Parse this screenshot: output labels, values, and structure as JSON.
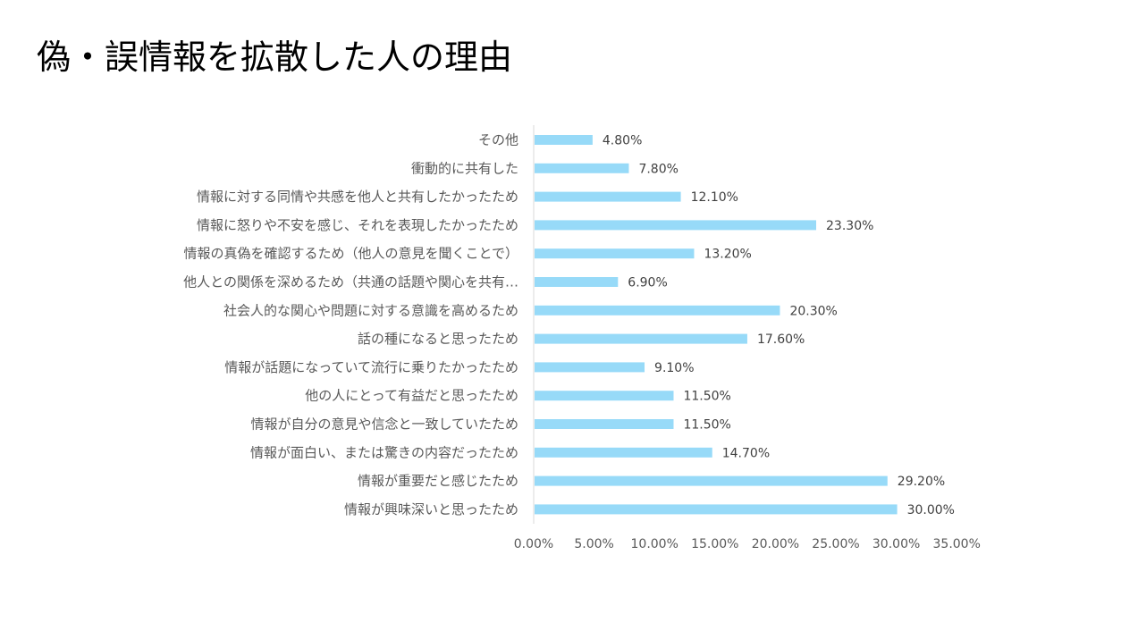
{
  "slide": {
    "title": "偽・誤情報を拡散した人の理由"
  },
  "chart_data": {
    "type": "bar",
    "orientation": "horizontal",
    "title": "",
    "xlabel": "",
    "ylabel": "",
    "categories": [
      "その他",
      "衝動的に共有した",
      "情報に対する同情や共感を他人と共有したかったため",
      "情報に怒りや不安を感じ、それを表現したかったため",
      "情報の真偽を確認するため（他人の意見を聞くことで）",
      "他人との関係を深めるため（共通の話題や関心を共有…",
      "社会人的な関心や問題に対する意識を高めるため",
      "話の種になると思ったため",
      "情報が話題になっていて流行に乗りたかったため",
      "他の人にとって有益だと思ったため",
      "情報が自分の意見や信念と一致していたため",
      "情報が面白い、または驚きの内容だったため",
      "情報が重要だと感じたため",
      "情報が興味深いと思ったため"
    ],
    "values": [
      4.8,
      7.8,
      12.1,
      23.3,
      13.2,
      6.9,
      20.3,
      17.6,
      9.1,
      11.5,
      11.5,
      14.7,
      29.2,
      30.0
    ],
    "value_labels": [
      "4.80%",
      "7.80%",
      "12.10%",
      "23.30%",
      "13.20%",
      "6.90%",
      "20.30%",
      "17.60%",
      "9.10%",
      "11.50%",
      "11.50%",
      "14.70%",
      "29.20%",
      "30.00%"
    ],
    "xlim": [
      0,
      35
    ],
    "x_ticks": [
      0,
      5,
      10,
      15,
      20,
      25,
      30,
      35
    ],
    "x_tick_labels": [
      "0.00%",
      "5.00%",
      "10.00%",
      "15.00%",
      "20.00%",
      "25.00%",
      "30.00%",
      "35.00%"
    ],
    "grid": false,
    "legend": "none",
    "bar_color": "#97DAF8",
    "axis_color": "#D9D9D9"
  }
}
